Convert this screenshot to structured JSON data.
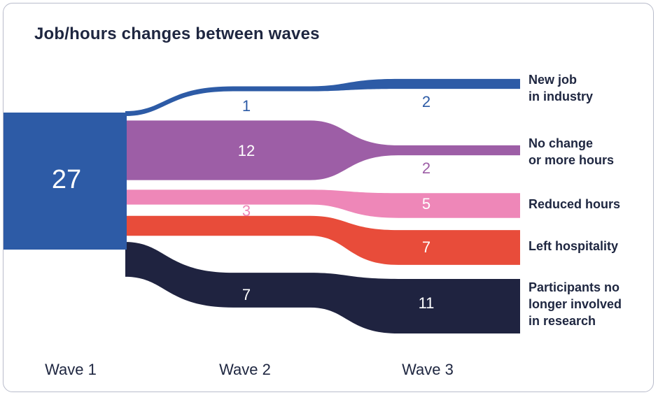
{
  "title": "Job/hours changes between waves",
  "colors": {
    "wave1_block": "#2d5ba6",
    "New job in industry": "#2d5ba6",
    "No change or more hours": "#9d5ea6",
    "Reduced hours": "#ee87b8",
    "Left hospitality": "#e84c3a",
    "Participants no longer involved in research": "#1f2340"
  },
  "chart_data": {
    "type": "sankey",
    "title": "Job/hours changes between waves",
    "stages": [
      "Wave 1",
      "Wave 2",
      "Wave 3"
    ],
    "start": {
      "stage": "Wave 1",
      "value": 27
    },
    "categories": [
      {
        "name": "New job in industry",
        "label_lines": [
          "New job",
          "in industry"
        ],
        "values": [
          1,
          2
        ]
      },
      {
        "name": "No change or more hours",
        "label_lines": [
          "No change",
          "or more hours"
        ],
        "values": [
          12,
          2
        ]
      },
      {
        "name": "Reduced hours",
        "label_lines": [
          "Reduced hours"
        ],
        "values": [
          3,
          5
        ]
      },
      {
        "name": "Left hospitality",
        "label_lines": [
          "Left hospitality"
        ],
        "values": [
          4,
          7
        ]
      },
      {
        "name": "Participants no longer involved in research",
        "label_lines": [
          "Participants no",
          "longer involved",
          "in research"
        ],
        "values": [
          7,
          11
        ]
      }
    ]
  }
}
